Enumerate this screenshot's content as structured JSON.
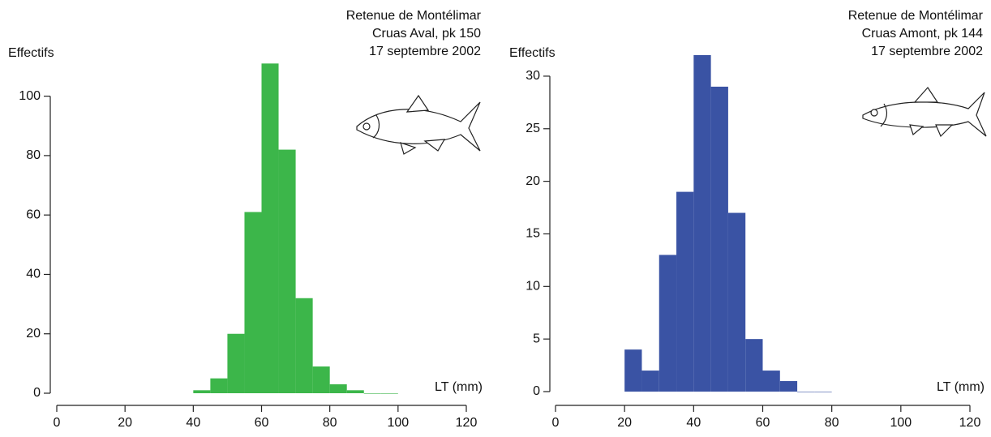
{
  "chart_data": [
    {
      "type": "histogram",
      "title": [
        "Retenue de Montélimar",
        "Cruas Aval, pk 150",
        "17 septembre 2002"
      ],
      "y_label": "Effectifs",
      "x_label": "LT (mm)",
      "color": "#3cb64a",
      "bins": [
        40,
        45,
        50,
        55,
        60,
        65,
        70,
        75,
        80,
        85,
        90,
        95,
        100
      ],
      "values": [
        1,
        5,
        20,
        61,
        111,
        82,
        32,
        9,
        3,
        1,
        0,
        0
      ],
      "xlim": [
        0,
        120
      ],
      "xticks": [
        0,
        20,
        40,
        60,
        80,
        100,
        120
      ],
      "ylim": [
        0,
        113
      ],
      "yticks": [
        0,
        20,
        40,
        60,
        80,
        100
      ]
    },
    {
      "type": "histogram",
      "title": [
        "Retenue de Montélimar",
        "Cruas Amont, pk 144",
        "17 septembre 2002"
      ],
      "y_label": "Effectifs",
      "x_label": "LT (mm)",
      "color": "#3a53a4",
      "bins": [
        20,
        25,
        30,
        35,
        40,
        45,
        50,
        55,
        60,
        65,
        70,
        75,
        80
      ],
      "values": [
        4,
        2,
        13,
        19,
        32,
        29,
        17,
        5,
        2,
        1,
        0,
        0
      ],
      "xlim": [
        0,
        120
      ],
      "xticks": [
        0,
        20,
        40,
        60,
        80,
        100,
        120
      ],
      "ylim": [
        0,
        32
      ],
      "yticks": [
        0,
        5,
        10,
        15,
        20,
        25,
        30
      ]
    }
  ]
}
